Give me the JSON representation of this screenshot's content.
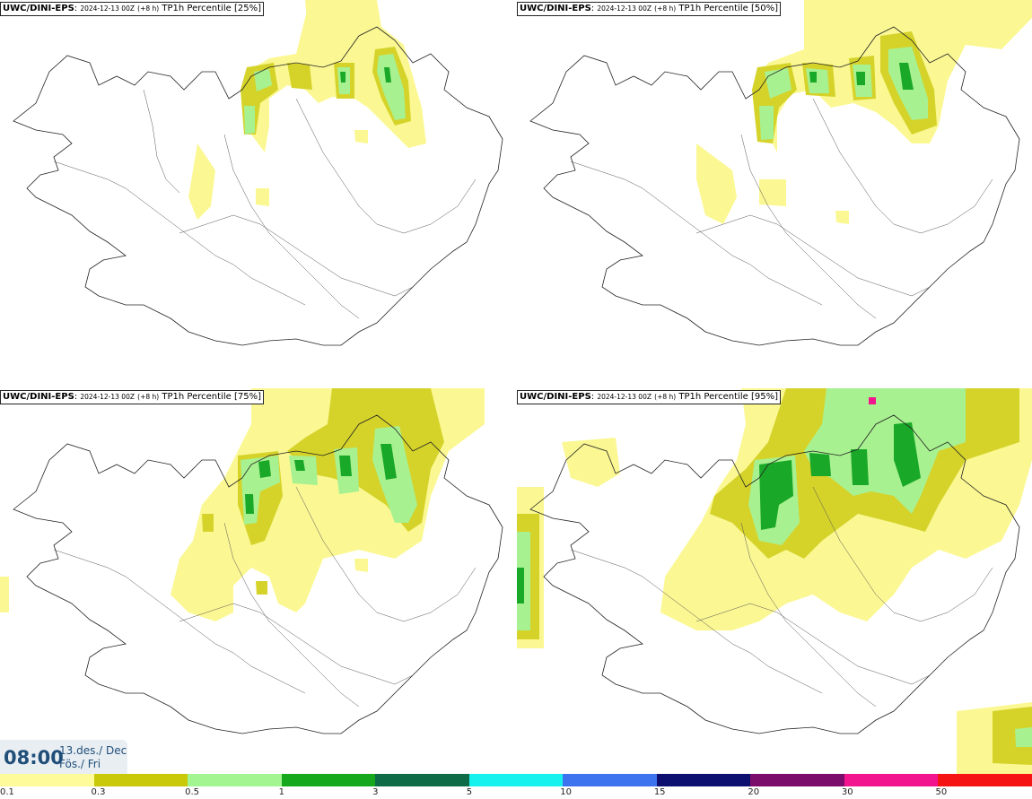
{
  "panels": [
    {
      "model": "UWC/DINI-EPS",
      "run": "2024-12-13 00Z",
      "lead": "(+8 h)",
      "product": "TP1h Percentile [25%]"
    },
    {
      "model": "UWC/DINI-EPS",
      "run": "2024-12-13 00Z",
      "lead": "(+8 h)",
      "product": "TP1h Percentile [50%]"
    },
    {
      "model": "UWC/DINI-EPS",
      "run": "2024-12-13 00Z",
      "lead": "(+8 h)",
      "product": "TP1h Percentile [75%]"
    },
    {
      "model": "UWC/DINI-EPS",
      "run": "2024-12-13 00Z",
      "lead": "(+8 h)",
      "product": "TP1h Percentile [95%]"
    }
  ],
  "valid": {
    "time": "08:00",
    "date": "13.des./ Dec",
    "day": "Fös./ Fri"
  },
  "legend": {
    "ticks": [
      "0.1",
      "0.3",
      "0.5",
      "1",
      "3",
      "5",
      "10",
      "15",
      "20",
      "30",
      "50"
    ],
    "colors": [
      "#fdfb9a",
      "#c9c90a",
      "#a2f590",
      "#16a81c",
      "#0d6b47",
      "#17f2ee",
      "#3d73ee",
      "#0c0f70",
      "#7c0c6c",
      "#f2148e",
      "#f51313"
    ]
  },
  "colors": {
    "light": "#fbf893",
    "olive": "#d5d32a",
    "lgreen": "#a8f190",
    "green": "#1aa828"
  }
}
